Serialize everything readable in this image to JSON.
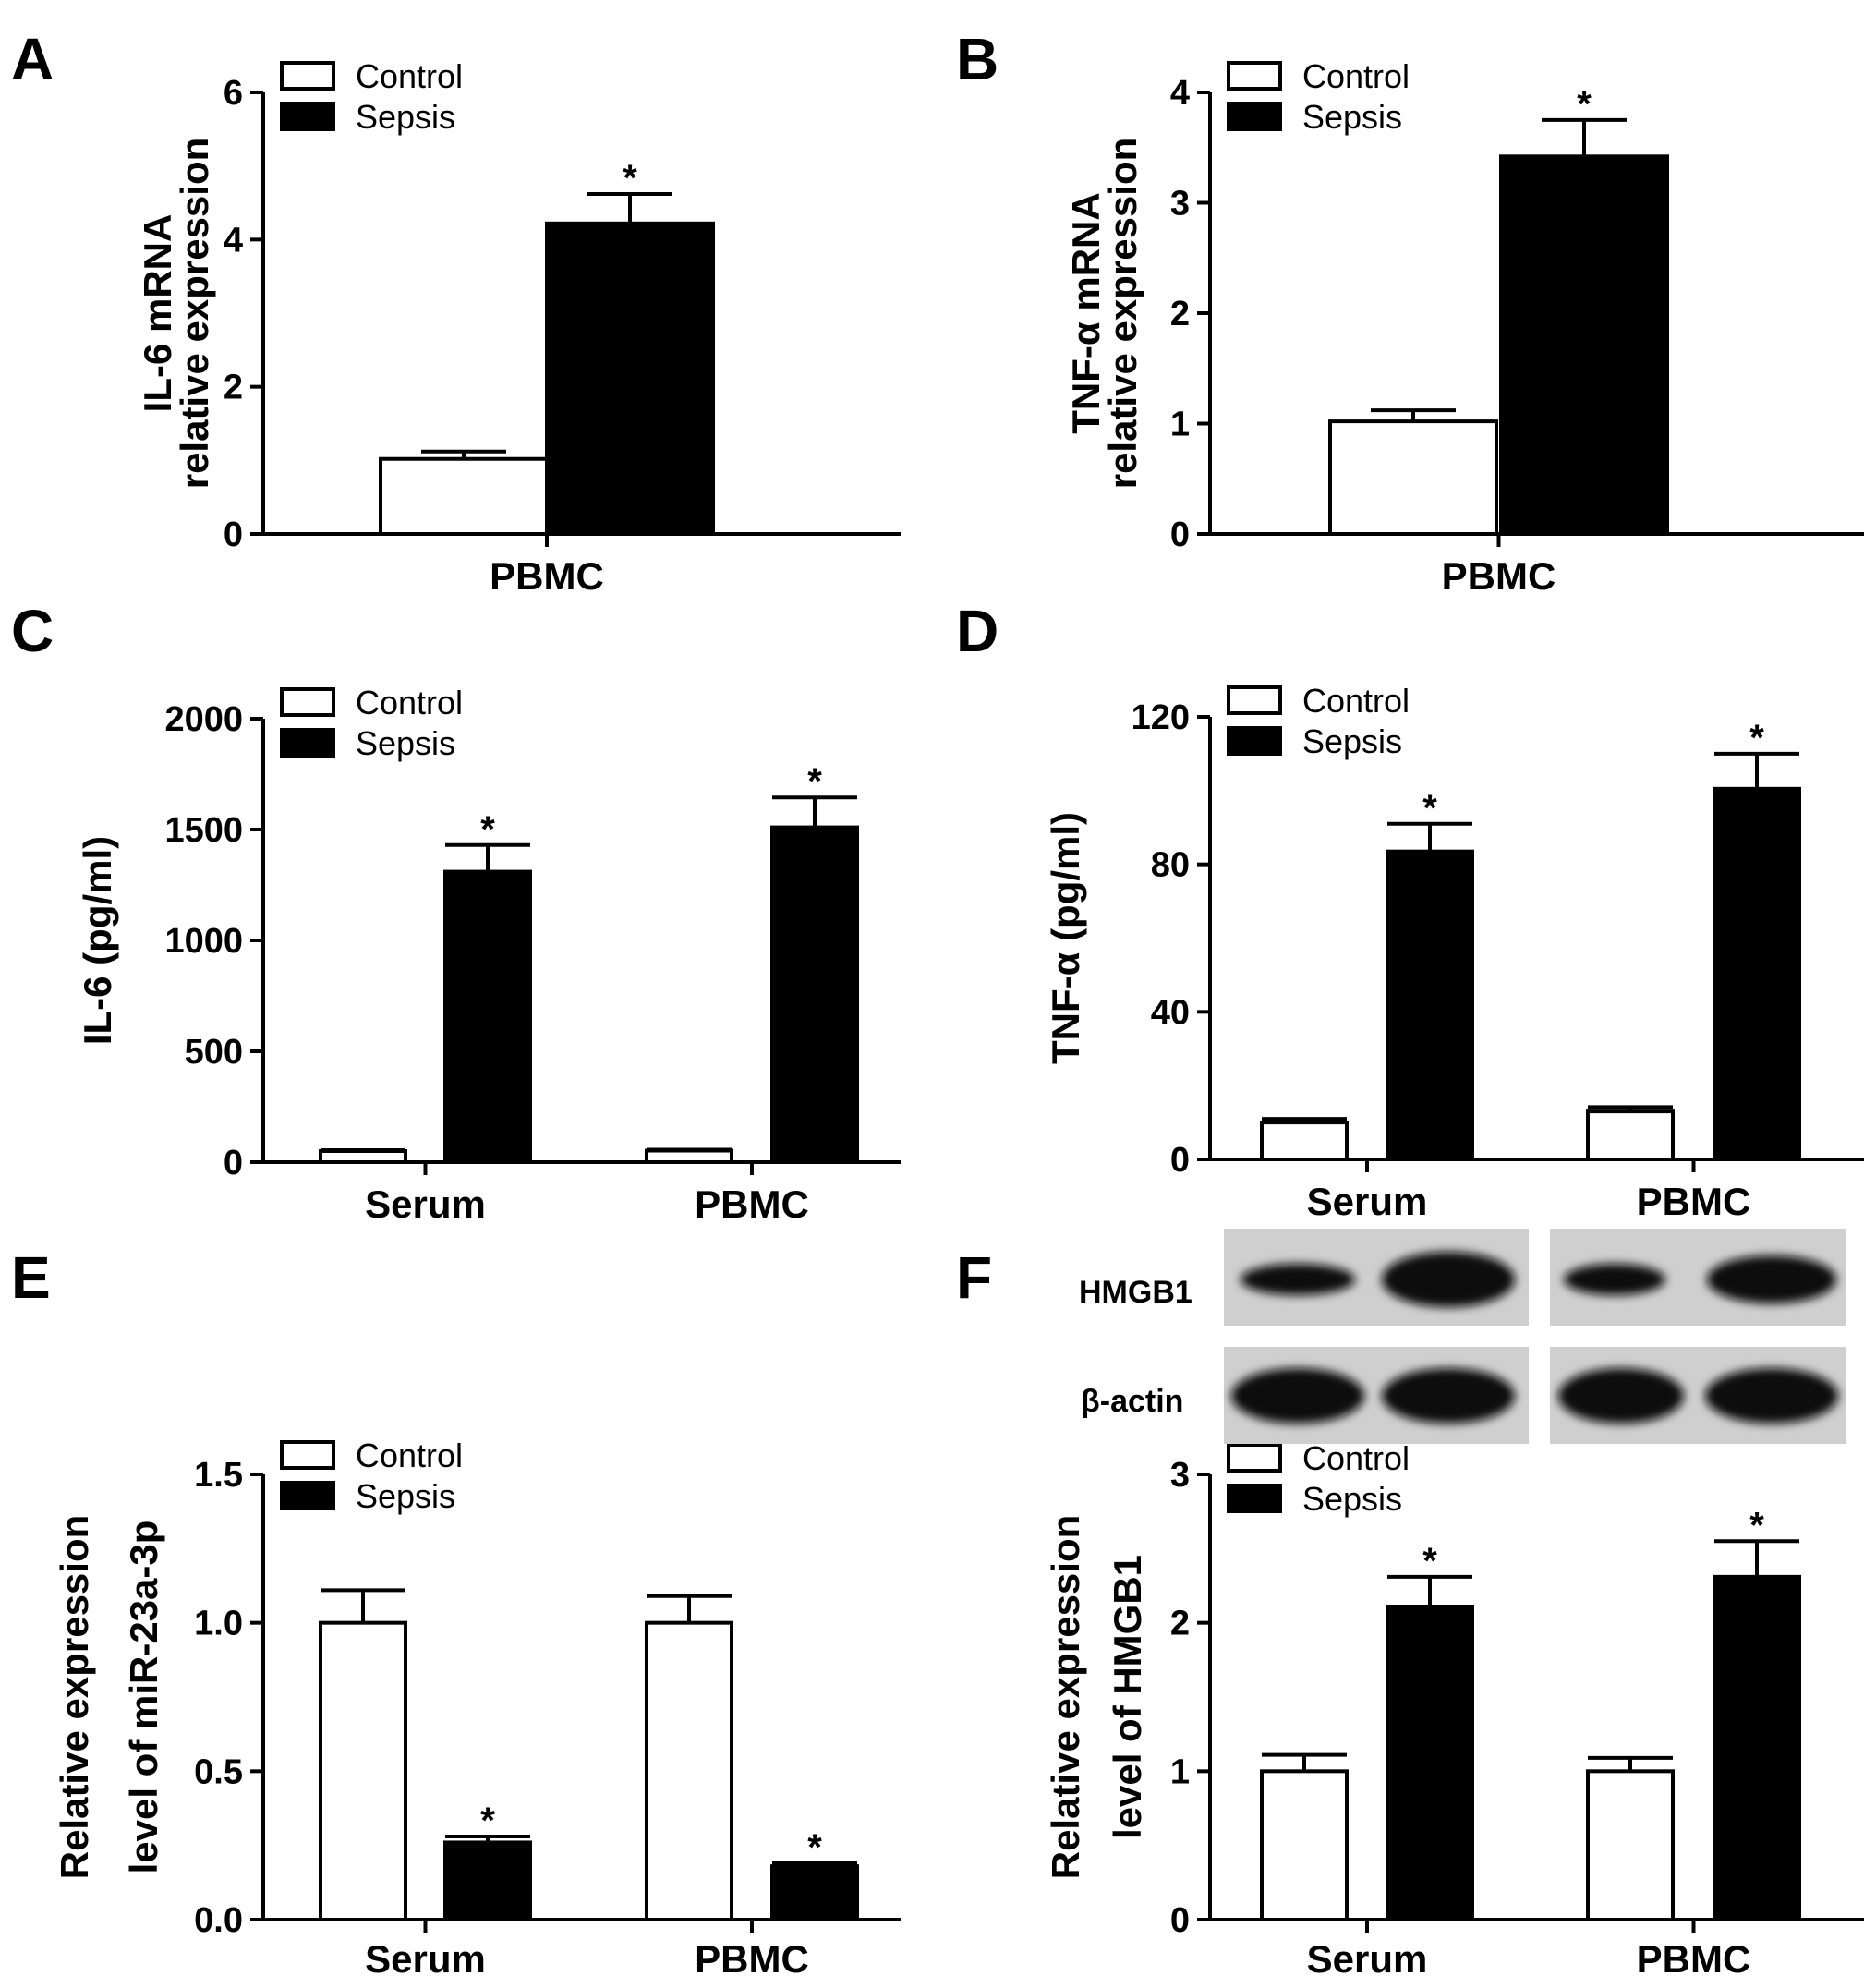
{
  "legend": {
    "control": "Control",
    "sepsis": "Sepsis"
  },
  "colors": {
    "control": "#ffffff",
    "sepsis": "#000000",
    "stroke": "#000000"
  },
  "blot": {
    "rows": [
      "HMGB1",
      "β-actin"
    ],
    "hmgb1_label": "HMGB1",
    "actin_label": "β-actin"
  },
  "chart_data": [
    {
      "panel": "A",
      "type": "bar",
      "ylabel_lines": [
        "IL-6 mRNA",
        "relative expression"
      ],
      "categories": [
        "PBMC"
      ],
      "ylim": [
        0,
        6
      ],
      "yticks": [
        0,
        2,
        4,
        6
      ],
      "tick_labels": [
        "0",
        "2",
        "4",
        "6"
      ],
      "series": [
        {
          "name": "Control",
          "values": [
            1.02
          ],
          "errors": [
            0.1
          ],
          "significance": [
            ""
          ]
        },
        {
          "name": "Sepsis",
          "values": [
            4.22
          ],
          "errors": [
            0.4
          ],
          "significance": [
            "*"
          ]
        }
      ]
    },
    {
      "panel": "B",
      "type": "bar",
      "ylabel_lines": [
        "TNF-α mRNA",
        "relative expression"
      ],
      "categories": [
        "PBMC"
      ],
      "ylim": [
        0,
        4
      ],
      "yticks": [
        0,
        1,
        2,
        3,
        4
      ],
      "tick_labels": [
        "0",
        "1",
        "2",
        "3",
        "4"
      ],
      "series": [
        {
          "name": "Control",
          "values": [
            1.02
          ],
          "errors": [
            0.1
          ],
          "significance": [
            ""
          ]
        },
        {
          "name": "Sepsis",
          "values": [
            3.42
          ],
          "errors": [
            0.33
          ],
          "significance": [
            "*"
          ]
        }
      ]
    },
    {
      "panel": "C",
      "type": "bar",
      "ylabel_lines": [
        "IL-6 (pg/ml)"
      ],
      "categories": [
        "Serum",
        "PBMC"
      ],
      "ylim": [
        0,
        2000
      ],
      "yticks": [
        0,
        500,
        1000,
        1500,
        2000
      ],
      "tick_labels": [
        "0",
        "500",
        "1000",
        "1500",
        "2000"
      ],
      "series": [
        {
          "name": "Control",
          "values": [
            50,
            52
          ],
          "errors": [
            4,
            4
          ],
          "significance": [
            "",
            ""
          ]
        },
        {
          "name": "Sepsis",
          "values": [
            1310,
            1510
          ],
          "errors": [
            120,
            135
          ],
          "significance": [
            "*",
            "*"
          ]
        }
      ]
    },
    {
      "panel": "D",
      "type": "bar",
      "ylabel_lines": [
        "TNF-α (pg/ml)"
      ],
      "categories": [
        "Serum",
        "PBMC"
      ],
      "ylim": [
        0,
        120
      ],
      "yticks": [
        0,
        40,
        80,
        120
      ],
      "tick_labels": [
        "0",
        "40",
        "80",
        "120"
      ],
      "series": [
        {
          "name": "Control",
          "values": [
            10,
            13
          ],
          "errors": [
            1,
            1.2
          ],
          "significance": [
            "",
            ""
          ]
        },
        {
          "name": "Sepsis",
          "values": [
            83.5,
            100.5
          ],
          "errors": [
            7.5,
            9.5
          ],
          "significance": [
            "*",
            "*"
          ]
        }
      ]
    },
    {
      "panel": "E",
      "type": "bar",
      "ylabel_lines": [
        "Relative expression",
        "level of miR-23a-3p"
      ],
      "categories": [
        "Serum",
        "PBMC"
      ],
      "ylim": [
        0,
        1.5
      ],
      "yticks": [
        0,
        0.5,
        1.0,
        1.5
      ],
      "tick_labels": [
        "0.0",
        "0.5",
        "1.0",
        "1.5"
      ],
      "series": [
        {
          "name": "Control",
          "values": [
            1.0,
            1.0
          ],
          "errors": [
            0.11,
            0.09
          ],
          "significance": [
            "",
            ""
          ]
        },
        {
          "name": "Sepsis",
          "values": [
            0.26,
            0.18
          ],
          "errors": [
            0.02,
            0.01
          ],
          "significance": [
            "*",
            "*"
          ]
        }
      ]
    },
    {
      "panel": "F",
      "type": "bar",
      "ylabel_lines": [
        "Relative expression",
        "level of HMGB1"
      ],
      "categories": [
        "Serum",
        "PBMC"
      ],
      "ylim": [
        0,
        3
      ],
      "yticks": [
        0,
        1,
        2,
        3
      ],
      "tick_labels": [
        "0",
        "1",
        "2",
        "3"
      ],
      "series": [
        {
          "name": "Control",
          "values": [
            1.0,
            1.0
          ],
          "errors": [
            0.11,
            0.09
          ],
          "significance": [
            "",
            ""
          ]
        },
        {
          "name": "Sepsis",
          "values": [
            2.11,
            2.31
          ],
          "errors": [
            0.2,
            0.24
          ],
          "significance": [
            "*",
            "*"
          ]
        }
      ]
    }
  ]
}
